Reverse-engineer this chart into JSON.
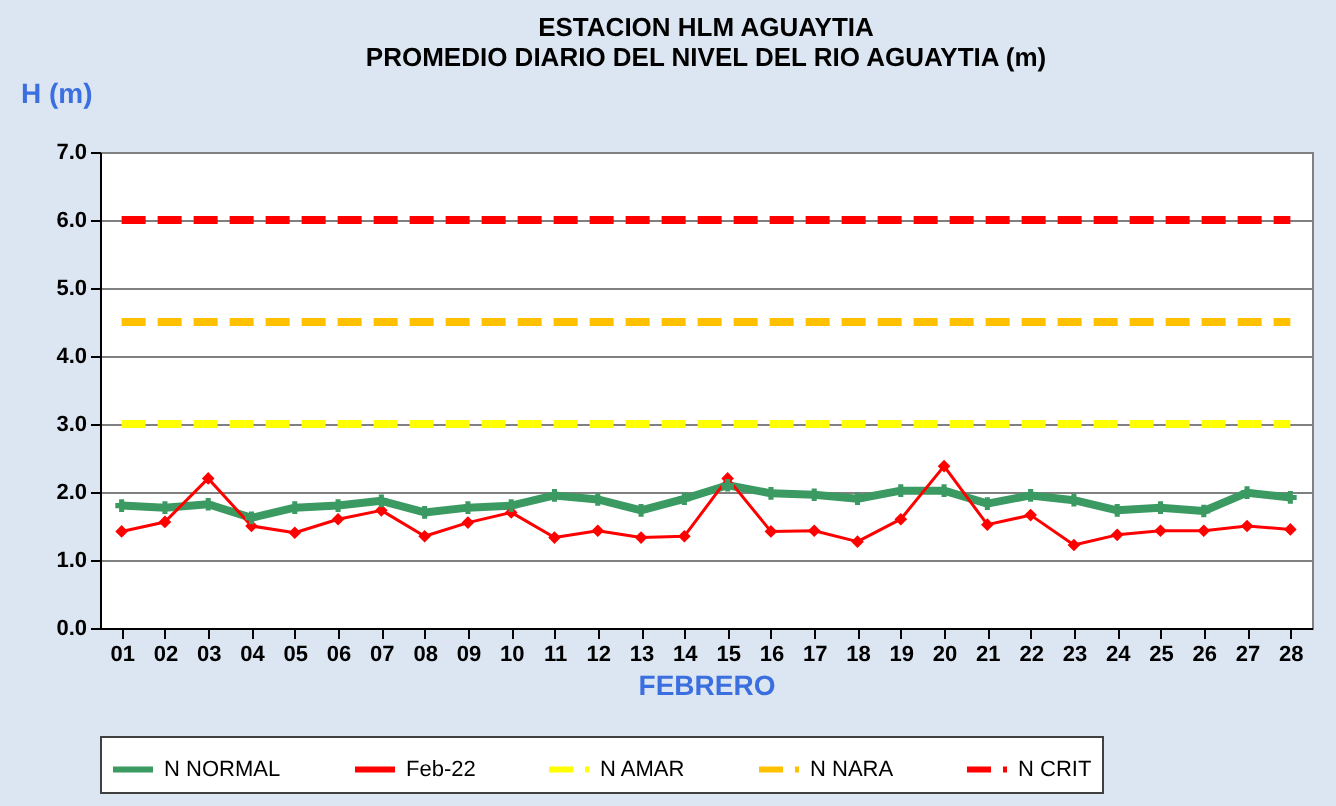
{
  "chart_data": {
    "type": "line",
    "title": [
      "ESTACION  HLM AGUAYTIA",
      "PROMEDIO  DIARIO  DEL NIVEL  DEL RIO AGUAYTIA  (m)"
    ],
    "xlabel": "FEBRERO",
    "ylabel": "H (m)",
    "categories": [
      "01",
      "02",
      "03",
      "04",
      "05",
      "06",
      "07",
      "08",
      "09",
      "10",
      "11",
      "12",
      "13",
      "14",
      "15",
      "16",
      "17",
      "18",
      "19",
      "20",
      "21",
      "22",
      "23",
      "24",
      "25",
      "26",
      "27",
      "28"
    ],
    "ylim": [
      0,
      7
    ],
    "yticks": [
      {
        "value": 0,
        "label": "0.0"
      },
      {
        "value": 1,
        "label": "1.0"
      },
      {
        "value": 2,
        "label": "2.0"
      },
      {
        "value": 3,
        "label": "3.0"
      },
      {
        "value": 4,
        "label": "4.0"
      },
      {
        "value": 5,
        "label": "5.0"
      },
      {
        "value": 6,
        "label": "6.0"
      },
      {
        "value": 7,
        "label": "7.0"
      }
    ],
    "grid": "y",
    "legend": "bottom",
    "series": [
      {
        "name": "N NORMAL",
        "color": "#3a9a62",
        "marker": "cross",
        "line_style": "solid",
        "values": [
          1.8,
          1.77,
          1.82,
          1.62,
          1.77,
          1.8,
          1.87,
          1.7,
          1.77,
          1.8,
          1.95,
          1.89,
          1.73,
          1.9,
          2.1,
          1.98,
          1.96,
          1.9,
          2.02,
          2.02,
          1.83,
          1.95,
          1.88,
          1.73,
          1.77,
          1.72,
          1.99,
          1.92
        ]
      },
      {
        "name": "Feb-22",
        "color": "#ff0000",
        "marker": "diamond",
        "line_style": "solid",
        "values": [
          1.42,
          1.56,
          2.2,
          1.5,
          1.4,
          1.6,
          1.73,
          1.35,
          1.55,
          1.7,
          1.33,
          1.43,
          1.33,
          1.35,
          2.2,
          1.42,
          1.43,
          1.27,
          1.6,
          2.38,
          1.52,
          1.66,
          1.22,
          1.37,
          1.43,
          1.43,
          1.5,
          1.45
        ]
      },
      {
        "name": "N AMAR",
        "color": "#ffff00",
        "marker": "none",
        "line_style": "dashed",
        "values": [
          3,
          3,
          3,
          3,
          3,
          3,
          3,
          3,
          3,
          3,
          3,
          3,
          3,
          3,
          3,
          3,
          3,
          3,
          3,
          3,
          3,
          3,
          3,
          3,
          3,
          3,
          3,
          3
        ]
      },
      {
        "name": "N NARA",
        "color": "#ffc000",
        "marker": "none",
        "line_style": "dashed",
        "values": [
          4.5,
          4.5,
          4.5,
          4.5,
          4.5,
          4.5,
          4.5,
          4.5,
          4.5,
          4.5,
          4.5,
          4.5,
          4.5,
          4.5,
          4.5,
          4.5,
          4.5,
          4.5,
          4.5,
          4.5,
          4.5,
          4.5,
          4.5,
          4.5,
          4.5,
          4.5,
          4.5,
          4.5
        ]
      },
      {
        "name": "N CRIT",
        "color": "#ff0000",
        "marker": "none",
        "line_style": "dashed",
        "values": [
          6,
          6,
          6,
          6,
          6,
          6,
          6,
          6,
          6,
          6,
          6,
          6,
          6,
          6,
          6,
          6,
          6,
          6,
          6,
          6,
          6,
          6,
          6,
          6,
          6,
          6,
          6,
          6
        ]
      }
    ]
  }
}
